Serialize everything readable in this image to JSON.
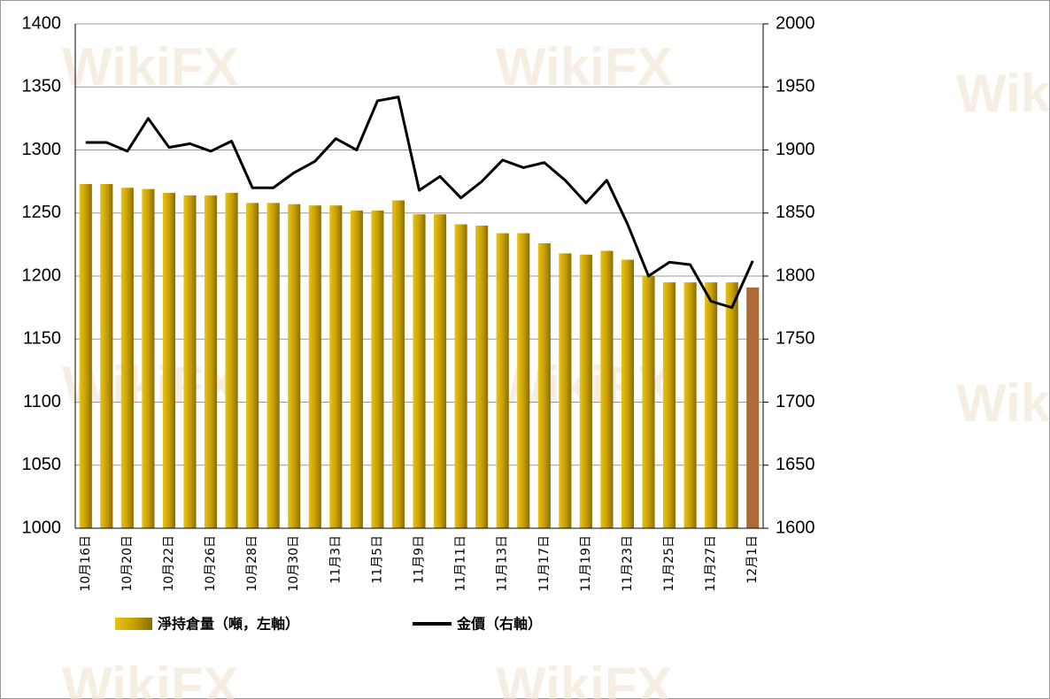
{
  "chart_data": {
    "type": "bar_line",
    "watermark": "WikiFX",
    "categories": [
      "10月16日",
      null,
      "10月20日",
      null,
      "10月22日",
      null,
      "10月26日",
      null,
      "10月28日",
      null,
      "10月30日",
      null,
      "11月3日",
      null,
      "11月5日",
      null,
      "11月9日",
      null,
      "11月11日",
      null,
      "11月13日",
      null,
      "11月17日",
      null,
      "11月19日",
      null,
      "11月23日",
      null,
      "11月25日",
      null,
      "11月27日",
      null,
      "12月1日"
    ],
    "series": [
      {
        "name": "淨持倉量（噸，左軸）",
        "color": "#c9a100",
        "type": "bar",
        "colors": [
          "#c9a100",
          "#c9a100",
          "#c9a100",
          "#c9a100",
          "#c9a100",
          "#c9a100",
          "#c9a100",
          "#c9a100",
          "#c9a100",
          "#c9a100",
          "#c9a100",
          "#c9a100",
          "#c9a100",
          "#c9a100",
          "#c9a100",
          "#c9a100",
          "#c9a100",
          "#c9a100",
          "#c9a100",
          "#c9a100",
          "#c9a100",
          "#c9a100",
          "#c9a100",
          "#c9a100",
          "#c9a100",
          "#c9a100",
          "#c9a100",
          "#c9a100",
          "#c9a100",
          "#c9a100",
          "#c9a100",
          "#c9a100",
          "#b06a36"
        ],
        "values": [
          1273,
          1273,
          1270,
          1269,
          1266,
          1264,
          1264,
          1266,
          1258,
          1258,
          1257,
          1256,
          1256,
          1252,
          1252,
          1260,
          1249,
          1249,
          1241,
          1240,
          1234,
          1234,
          1226,
          1218,
          1217,
          1220,
          1213,
          1200,
          1195,
          1195,
          1195,
          1195,
          1191
        ]
      },
      {
        "name": "金價（右軸）",
        "color": "#000000",
        "type": "line",
        "axis": "y2",
        "values": [
          1906,
          1906,
          1899,
          1925,
          1902,
          1905,
          1899,
          1907,
          1870,
          1870,
          1882,
          1891,
          1909,
          1900,
          1939,
          1942,
          1868,
          1879,
          1862,
          1875,
          1892,
          1886,
          1890,
          1876,
          1858,
          1876,
          1841,
          1800,
          1811,
          1809,
          1780,
          1775,
          1812
        ]
      }
    ],
    "ylim": [
      1000,
      1400
    ],
    "yticks": [
      1000,
      1050,
      1100,
      1150,
      1200,
      1250,
      1300,
      1350,
      1400
    ],
    "y2lim": [
      1600,
      2000
    ],
    "y2ticks": [
      1600,
      1650,
      1700,
      1750,
      1800,
      1850,
      1900,
      1950,
      2000
    ],
    "grid": true
  }
}
